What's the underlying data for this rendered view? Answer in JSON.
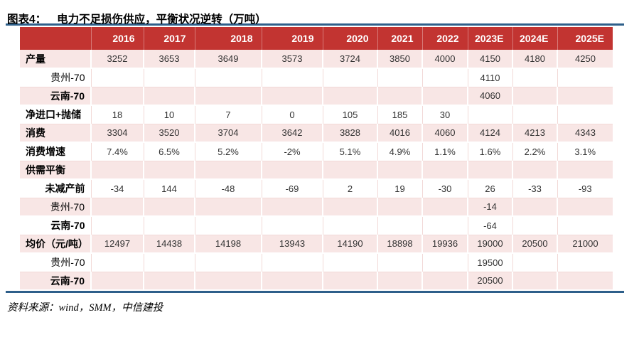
{
  "header": {
    "exhibit_label": "图表4：",
    "title": "电力不足损伤供应，平衡状况逆转（万吨）"
  },
  "source_note": "资料来源：wind，SMM，中信建投",
  "colors": {
    "header_red": "#C23431",
    "row_pink": "#F8E6E5",
    "rule_blue": "#2E5F8A",
    "header_text": "#FFFFFF",
    "cell_text": "#333333"
  },
  "chart_data": {
    "type": "table",
    "title": "电力不足损伤供应，平衡状况逆转（万吨）",
    "unit": "万吨；均价为元/吨",
    "columns": [
      "2016",
      "2017",
      "2018",
      "2019",
      "2020",
      "2021",
      "2022",
      "2023E",
      "2024E",
      "2025E"
    ],
    "rows": [
      {
        "label": "产量",
        "sub": false,
        "bold": true,
        "values": [
          "3252",
          "3653",
          "3649",
          "3573",
          "3724",
          "3850",
          "4000",
          "4150",
          "4180",
          "4250"
        ]
      },
      {
        "label": "贵州-70",
        "sub": true,
        "bold": false,
        "values": [
          "",
          "",
          "",
          "",
          "",
          "",
          "",
          "4110",
          "",
          ""
        ]
      },
      {
        "label": "云南-70",
        "sub": true,
        "bold": true,
        "values": [
          "",
          "",
          "",
          "",
          "",
          "",
          "",
          "4060",
          "",
          ""
        ]
      },
      {
        "label": "净进口+抛储",
        "sub": false,
        "bold": true,
        "values": [
          "18",
          "10",
          "7",
          "0",
          "105",
          "185",
          "30",
          "",
          "",
          ""
        ]
      },
      {
        "label": "消费",
        "sub": false,
        "bold": true,
        "values": [
          "3304",
          "3520",
          "3704",
          "3642",
          "3828",
          "4016",
          "4060",
          "4124",
          "4213",
          "4343"
        ]
      },
      {
        "label": "消费增速",
        "sub": false,
        "bold": true,
        "values": [
          "7.4%",
          "6.5%",
          "5.2%",
          "-2%",
          "5.1%",
          "4.9%",
          "1.1%",
          "1.6%",
          "2.2%",
          "3.1%"
        ]
      },
      {
        "label": "供需平衡",
        "sub": false,
        "bold": true,
        "values": [
          "",
          "",
          "",
          "",
          "",
          "",
          "",
          "",
          "",
          ""
        ]
      },
      {
        "label": "未减产前",
        "sub": true,
        "bold": true,
        "values": [
          "-34",
          "144",
          "-48",
          "-69",
          "2",
          "19",
          "-30",
          "26",
          "-33",
          "-93"
        ]
      },
      {
        "label": "贵州-70",
        "sub": true,
        "bold": false,
        "values": [
          "",
          "",
          "",
          "",
          "",
          "",
          "",
          "-14",
          "",
          ""
        ]
      },
      {
        "label": "云南-70",
        "sub": true,
        "bold": true,
        "values": [
          "",
          "",
          "",
          "",
          "",
          "",
          "",
          "-64",
          "",
          ""
        ]
      },
      {
        "label": "均价（元/吨）",
        "sub": false,
        "bold": true,
        "values": [
          "12497",
          "14438",
          "14198",
          "13943",
          "14190",
          "18898",
          "19936",
          "19000",
          "20500",
          "21000"
        ]
      },
      {
        "label": "贵州-70",
        "sub": true,
        "bold": false,
        "values": [
          "",
          "",
          "",
          "",
          "",
          "",
          "",
          "19500",
          "",
          ""
        ]
      },
      {
        "label": "云南-70",
        "sub": true,
        "bold": true,
        "values": [
          "",
          "",
          "",
          "",
          "",
          "",
          "",
          "20500",
          "",
          ""
        ]
      }
    ]
  }
}
